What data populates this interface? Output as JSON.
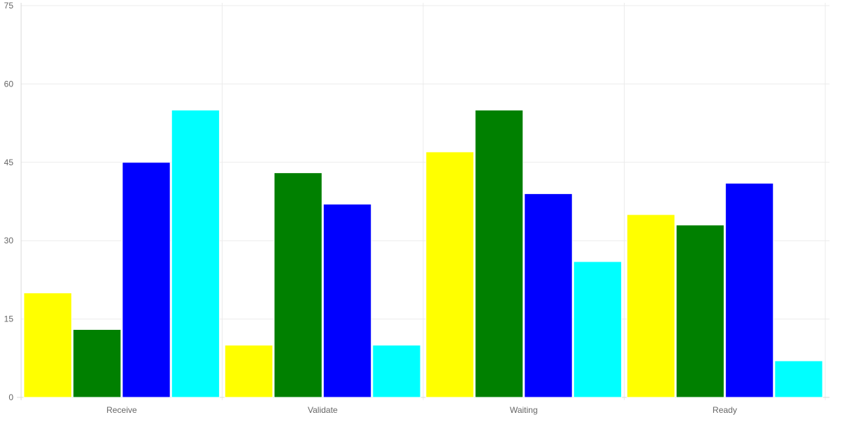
{
  "chart_data": {
    "type": "bar",
    "categories": [
      "Receive",
      "Validate",
      "Waiting",
      "Ready"
    ],
    "series": [
      {
        "values": [
          20,
          10,
          47,
          35
        ],
        "color": "#ffff00"
      },
      {
        "values": [
          13,
          43,
          55,
          33
        ],
        "color": "#008000"
      },
      {
        "values": [
          45,
          37,
          39,
          41
        ],
        "color": "#0000ff"
      },
      {
        "values": [
          55,
          10,
          26,
          7
        ],
        "color": "#00ffff"
      }
    ],
    "ylim": [
      0,
      75
    ],
    "y_ticks": [
      0,
      15,
      30,
      45,
      60,
      75
    ],
    "grid": true,
    "legend": "none",
    "title": "",
    "xlabel": "",
    "ylabel": ""
  }
}
